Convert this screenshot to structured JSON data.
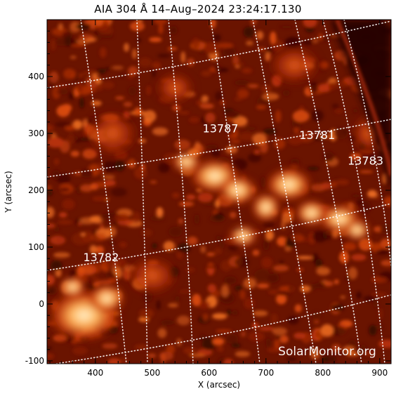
{
  "title": "AIA 304 Å 14–Aug–2024 23:24:17.130",
  "axes": {
    "xlabel": "X (arcsec)",
    "ylabel": "Y (arcsec)",
    "xlim": [
      315,
      920
    ],
    "ylim": [
      -105,
      500
    ],
    "xticks": [
      400,
      500,
      600,
      700,
      800,
      900
    ],
    "yticks": [
      -100,
      0,
      100,
      200,
      300,
      400
    ]
  },
  "active_regions": [
    {
      "number": "13787",
      "x": 620,
      "y": 302
    },
    {
      "number": "13781",
      "x": 790,
      "y": 290
    },
    {
      "number": "13783",
      "x": 875,
      "y": 245
    },
    {
      "number": "13782",
      "x": 410,
      "y": 75
    }
  ],
  "credit": "SolarMonitor.org",
  "colors": {
    "background": "#1a0500",
    "mid": "#8a1a00",
    "bright": "#ffd89a",
    "grid": "#ffffff"
  }
}
